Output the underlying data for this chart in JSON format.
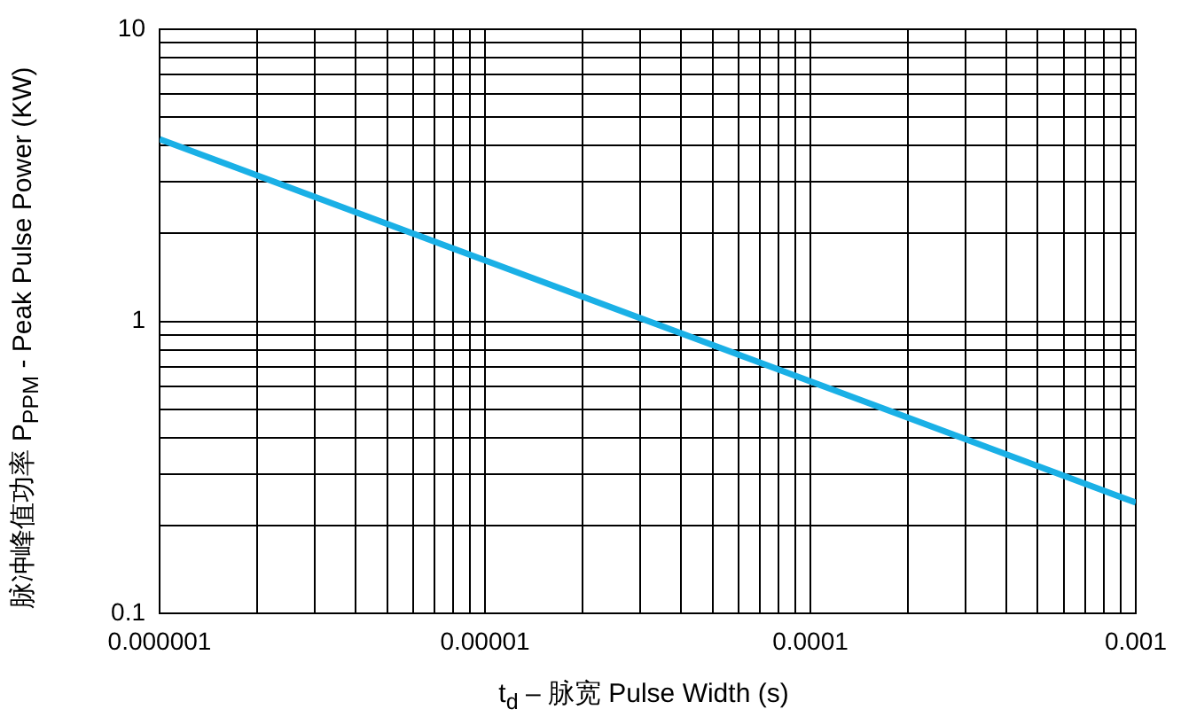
{
  "chart_data": {
    "type": "line",
    "xlabel": "t$_{d}$ – 脉宽 Pulse Width (s)",
    "ylabel": "脉冲峰值功率 P$_{PPM}$ - Peak Pulse Power (KW)",
    "log": "xy",
    "grid": true,
    "legend": false,
    "marker": "none",
    "line_style": "solid",
    "x": [
      1e-06,
      0.001
    ],
    "series": [
      {
        "color": "#1ab0e6",
        "values": [
          4.2,
          0.24
        ]
      }
    ],
    "xlim": [
      1e-06,
      0.001
    ],
    "xticks": [
      {
        "value": 1e-06,
        "label": "0.000001"
      },
      {
        "value": 2e-06,
        "label": null
      },
      {
        "value": 3e-06,
        "label": null
      },
      {
        "value": 4e-06,
        "label": null
      },
      {
        "value": 5e-06,
        "label": null
      },
      {
        "value": 6e-06,
        "label": null
      },
      {
        "value": 7e-06,
        "label": null
      },
      {
        "value": 8e-06,
        "label": null
      },
      {
        "value": 9e-06,
        "label": null
      },
      {
        "value": 1e-05,
        "label": "0.00001"
      },
      {
        "value": 2e-05,
        "label": null
      },
      {
        "value": 3e-05,
        "label": null
      },
      {
        "value": 4e-05,
        "label": null
      },
      {
        "value": 5e-05,
        "label": null
      },
      {
        "value": 6e-05,
        "label": null
      },
      {
        "value": 7e-05,
        "label": null
      },
      {
        "value": 8e-05,
        "label": null
      },
      {
        "value": 9e-05,
        "label": null
      },
      {
        "value": 0.0001,
        "label": "0.0001"
      },
      {
        "value": 0.0002,
        "label": null
      },
      {
        "value": 0.0003,
        "label": null
      },
      {
        "value": 0.0004,
        "label": null
      },
      {
        "value": 0.0005,
        "label": null
      },
      {
        "value": 0.0006,
        "label": null
      },
      {
        "value": 0.0007,
        "label": null
      },
      {
        "value": 0.0008,
        "label": null
      },
      {
        "value": 0.0009,
        "label": null
      },
      {
        "value": 0.001,
        "label": "0.001"
      }
    ],
    "ylim": [
      0.1,
      10
    ],
    "yticks": [
      0.1,
      {
        "value": 0.2,
        "label": null
      },
      {
        "value": 0.3,
        "label": null
      },
      {
        "value": 0.4,
        "label": null
      },
      {
        "value": 0.5,
        "label": null
      },
      {
        "value": 0.6,
        "label": null
      },
      {
        "value": 0.7,
        "label": null
      },
      {
        "value": 0.8,
        "label": null
      },
      {
        "value": 0.9,
        "label": null
      },
      1,
      {
        "value": 2,
        "label": null
      },
      {
        "value": 3,
        "label": null
      },
      {
        "value": 4,
        "label": null
      },
      {
        "value": 5,
        "label": null
      },
      {
        "value": 6,
        "label": null
      },
      {
        "value": 7,
        "label": null
      },
      {
        "value": 8,
        "label": null
      },
      {
        "value": 9,
        "label": null
      },
      10
    ]
  }
}
